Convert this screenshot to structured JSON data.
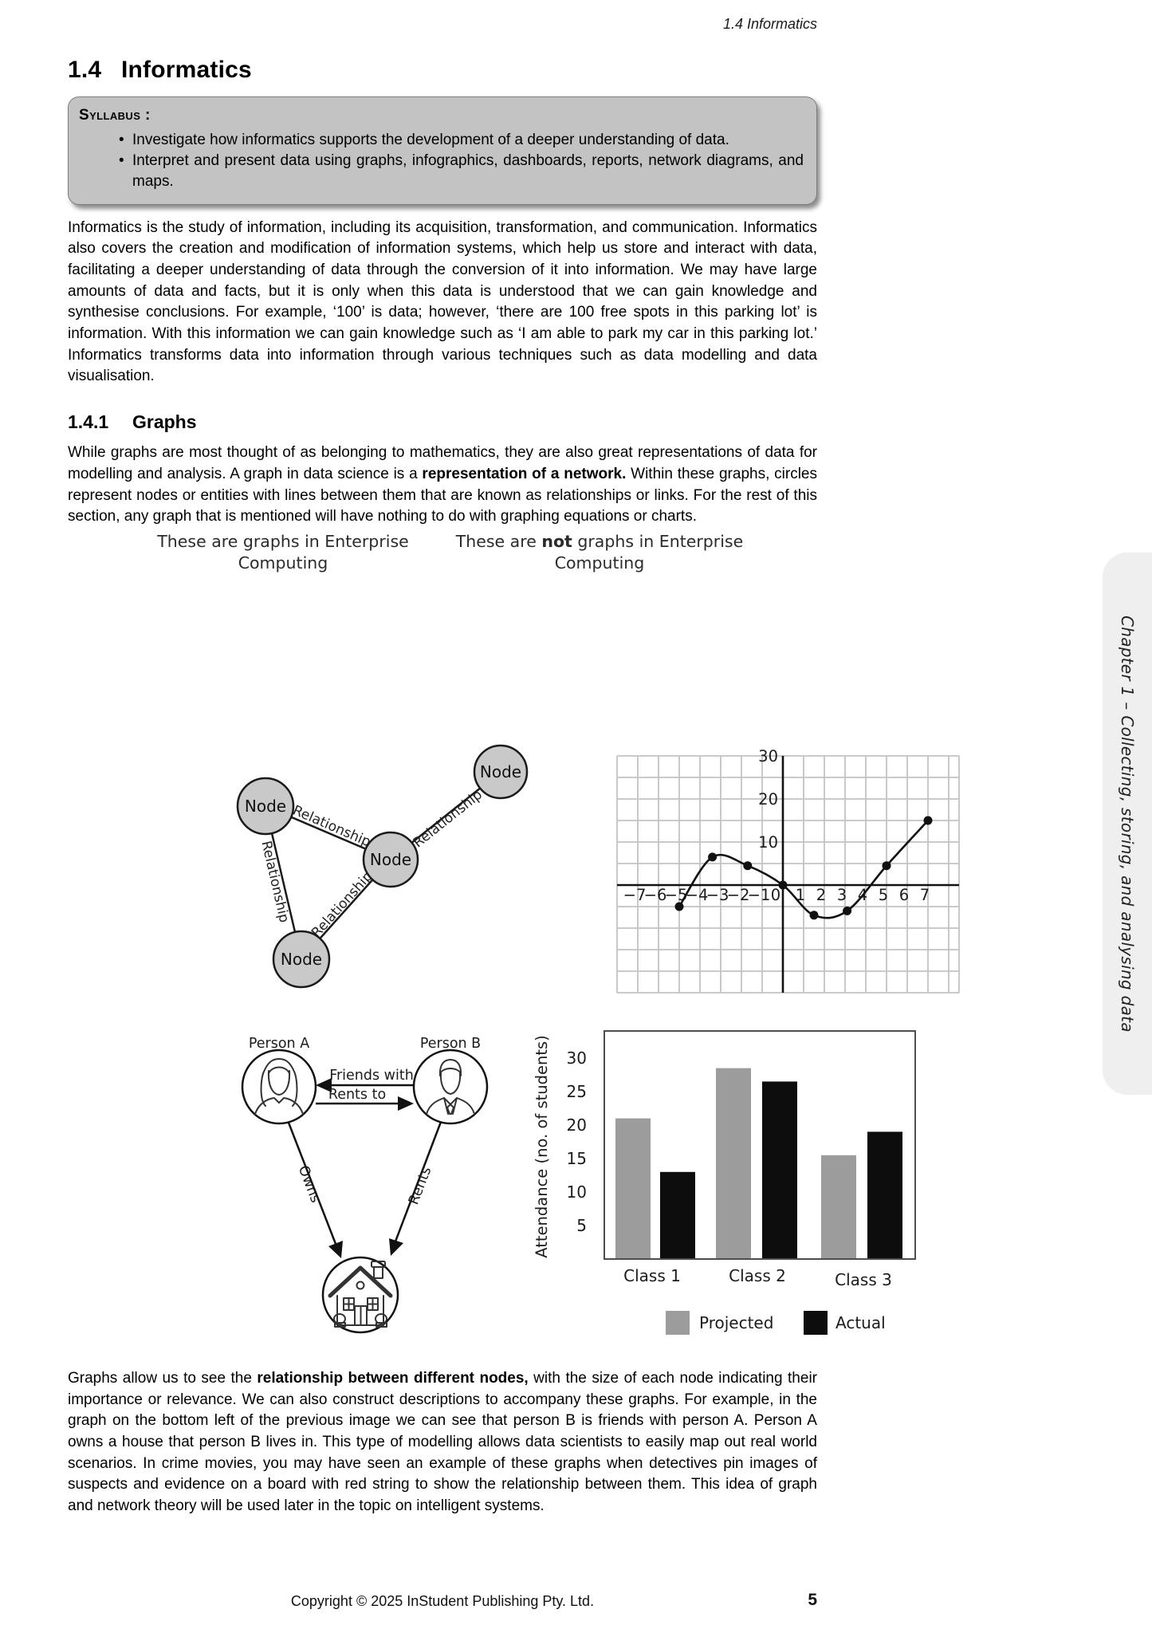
{
  "running_header": "1.4 Informatics",
  "heading": {
    "number": "1.4",
    "title": "Informatics"
  },
  "syllabus": {
    "label": "Syllabus :",
    "items": [
      "Investigate how informatics supports the development of a deeper understanding of data.",
      "Interpret and present data using graphs, infographics, dashboards, reports, network diagrams, and maps."
    ]
  },
  "intro_paragraph": "Informatics is the study of information, including its acquisition, transformation, and communication. Informatics also covers the creation and modification of information systems, which help us store and interact with data, facilitating a deeper understanding of data through the conversion of it into information. We may have large amounts of data and facts, but it is only when this data is understood that we can gain knowledge and synthesise conclusions. For example, ‘100’ is data; however, ‘there are 100 free spots in this parking lot’ is information. With this information we can gain knowledge such as ‘I am able to park my car in this parking lot.’ Informatics transforms data into information through various techniques such as data modelling and data visualisation.",
  "section": {
    "number": "1.4.1",
    "title": "Graphs"
  },
  "graphs_paragraph": {
    "pre": "While graphs are most thought of as belonging to mathematics, they are also great representations of data for modelling and analysis. A graph in data science is a ",
    "bold": "representation of a network.",
    "post": " Within these graphs, circles represent nodes or entities with lines between them that are known as relationships or links. For the rest of this section, any graph that is mentioned will have nothing to do with graphing equations or charts."
  },
  "figures": {
    "left_caption": {
      "line1": "These are graphs in Enterprise",
      "line2": "Computing"
    },
    "right_caption": {
      "pre": "These are ",
      "bold": "not",
      "post": " graphs in Enterprise",
      "line2": "Computing"
    },
    "network": {
      "node_label": "Node",
      "edge_label": "Relationship"
    },
    "person_graph": {
      "person_a": "Person A",
      "person_b": "Person B",
      "friends_with": "Friends with",
      "rents_to": "Rents to",
      "owns": "Owns",
      "rents": "Rents"
    }
  },
  "chart_data": [
    {
      "type": "line",
      "title": "",
      "xlabel": "",
      "ylabel": "",
      "x_range": [
        -8,
        8.5
      ],
      "y_range": [
        -25,
        30
      ],
      "x_ticks": [
        -7,
        -6,
        -5,
        -4,
        -3,
        -2,
        -1,
        0,
        1,
        2,
        3,
        4,
        5,
        6,
        7
      ],
      "y_ticks": [
        10,
        20,
        30
      ],
      "grid": true,
      "points": [
        [
          -5,
          -5
        ],
        [
          -3.4,
          6.5
        ],
        [
          -1.7,
          4.5
        ],
        [
          0,
          0
        ],
        [
          1.5,
          -7
        ],
        [
          3.1,
          -6
        ],
        [
          5,
          4.5
        ],
        [
          7,
          15
        ]
      ],
      "description": "Smooth cubic-like curve with marked data points crossing the x-axis near -4.5, 0 and 4.5"
    },
    {
      "type": "bar",
      "categories": [
        "Class 1",
        "Class 2",
        "Class 3"
      ],
      "series": [
        {
          "name": "Projected",
          "color": "#9c9c9c",
          "values": [
            21,
            28.5,
            15.5
          ]
        },
        {
          "name": "Actual",
          "color": "#0d0d0d",
          "values": [
            13,
            26.5,
            19
          ]
        }
      ],
      "ylabel": "Attendance (no. of students)",
      "y_ticks": [
        5,
        10,
        15,
        20,
        25,
        30
      ],
      "ylim": [
        0,
        32
      ],
      "grid": false,
      "legend_position": "bottom"
    }
  ],
  "closing_paragraph": {
    "pre": "Graphs allow us to see the ",
    "bold": "relationship between different nodes,",
    "post": " with the size of each node indicating their importance or relevance.  We can also construct descriptions to accompany these graphs.  For example, in the graph on the bottom left of the previous image we can see that person B is friends with person A. Person A owns a house that person B lives in.  This type of modelling allows data scientists to easily map out real world scenarios.  In crime movies, you may have seen an example of these graphs when detectives pin images of suspects and evidence on a board with red string to show the relationship between them. This idea of graph and network theory will be used later in the topic on intelligent systems."
  },
  "footer": {
    "copyright": "Copyright ©  2025 InStudent Publishing Pty. Ltd.",
    "page_number": "5"
  },
  "side_tab": {
    "text": "Chapter 1 – Collecting, storing, and analysing data"
  },
  "colors": {
    "node_fill": "#c9c9c9",
    "syllabus_bg": "#c3c3c3",
    "grid_line": "#c3c3c3",
    "bar_projected": "#9c9c9c",
    "bar_actual": "#0d0d0d",
    "side_tab_bg": "#efefef"
  }
}
